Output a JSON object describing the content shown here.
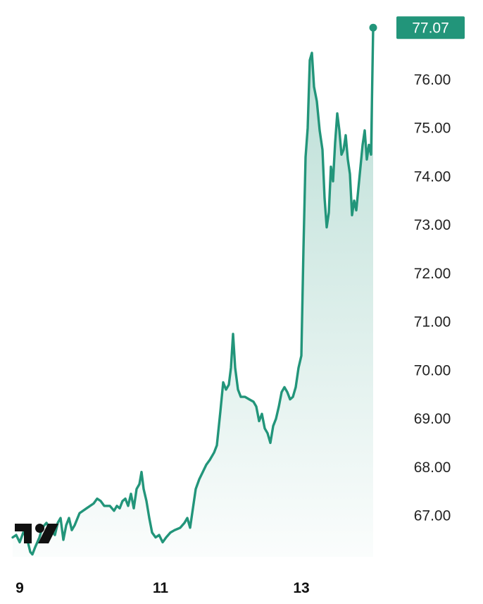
{
  "colors": {
    "line": "#22957A",
    "area_top": "#22957A",
    "label_bg": "#22957A",
    "logo": "#111111",
    "tick_text": "#222222"
  },
  "logo_icon": "tradingview-logo-icon",
  "last_price_label": "77.07",
  "chart_data": {
    "type": "area",
    "title": "",
    "xlabel": "",
    "ylabel": "",
    "x_ticks": [
      "9",
      "11",
      "13"
    ],
    "y_ticks": [
      "67.00",
      "68.00",
      "69.00",
      "70.00",
      "71.00",
      "72.00",
      "73.00",
      "74.00",
      "75.00",
      "76.00"
    ],
    "ylim": [
      66.15,
      77.35
    ],
    "xlim": [
      8.9,
      14.22
    ],
    "grid": false,
    "legend": "none",
    "series": [
      {
        "values": [
          [
            8.9,
            66.55
          ],
          [
            8.95,
            66.6
          ],
          [
            9.0,
            66.45
          ],
          [
            9.05,
            66.65
          ],
          [
            9.1,
            66.55
          ],
          [
            9.15,
            66.25
          ],
          [
            9.18,
            66.2
          ],
          [
            9.22,
            66.35
          ],
          [
            9.28,
            66.55
          ],
          [
            9.32,
            66.75
          ],
          [
            9.38,
            66.85
          ],
          [
            9.44,
            66.7
          ],
          [
            9.5,
            66.6
          ],
          [
            9.54,
            66.85
          ],
          [
            9.58,
            66.95
          ],
          [
            9.62,
            66.5
          ],
          [
            9.66,
            66.8
          ],
          [
            9.7,
            66.95
          ],
          [
            9.74,
            66.7
          ],
          [
            9.78,
            66.8
          ],
          [
            9.85,
            67.05
          ],
          [
            9.95,
            67.15
          ],
          [
            10.05,
            67.25
          ],
          [
            10.1,
            67.35
          ],
          [
            10.15,
            67.3
          ],
          [
            10.2,
            67.2
          ],
          [
            10.28,
            67.2
          ],
          [
            10.34,
            67.1
          ],
          [
            10.38,
            67.2
          ],
          [
            10.42,
            67.15
          ],
          [
            10.46,
            67.3
          ],
          [
            10.5,
            67.35
          ],
          [
            10.54,
            67.2
          ],
          [
            10.58,
            67.45
          ],
          [
            10.62,
            67.15
          ],
          [
            10.66,
            67.55
          ],
          [
            10.7,
            67.65
          ],
          [
            10.73,
            67.9
          ],
          [
            10.76,
            67.55
          ],
          [
            10.8,
            67.3
          ],
          [
            10.84,
            66.95
          ],
          [
            10.88,
            66.65
          ],
          [
            10.93,
            66.55
          ],
          [
            10.98,
            66.6
          ],
          [
            11.03,
            66.45
          ],
          [
            11.08,
            66.55
          ],
          [
            11.14,
            66.65
          ],
          [
            11.2,
            66.7
          ],
          [
            11.28,
            66.75
          ],
          [
            11.34,
            66.85
          ],
          [
            11.38,
            66.95
          ],
          [
            11.42,
            66.75
          ],
          [
            11.46,
            67.15
          ],
          [
            11.5,
            67.55
          ],
          [
            11.55,
            67.75
          ],
          [
            11.6,
            67.9
          ],
          [
            11.65,
            68.05
          ],
          [
            11.7,
            68.15
          ],
          [
            11.76,
            68.3
          ],
          [
            11.8,
            68.45
          ],
          [
            11.85,
            69.15
          ],
          [
            11.89,
            69.75
          ],
          [
            11.93,
            69.6
          ],
          [
            11.97,
            69.7
          ],
          [
            12.0,
            70.05
          ],
          [
            12.03,
            70.75
          ],
          [
            12.06,
            70.05
          ],
          [
            12.1,
            69.6
          ],
          [
            12.14,
            69.45
          ],
          [
            12.2,
            69.45
          ],
          [
            12.26,
            69.4
          ],
          [
            12.32,
            69.35
          ],
          [
            12.36,
            69.25
          ],
          [
            12.4,
            68.95
          ],
          [
            12.44,
            69.1
          ],
          [
            12.48,
            68.8
          ],
          [
            12.52,
            68.7
          ],
          [
            12.56,
            68.5
          ],
          [
            12.6,
            68.85
          ],
          [
            12.64,
            69.0
          ],
          [
            12.68,
            69.25
          ],
          [
            12.72,
            69.55
          ],
          [
            12.76,
            69.65
          ],
          [
            12.8,
            69.55
          ],
          [
            12.84,
            69.4
          ],
          [
            12.88,
            69.45
          ],
          [
            12.92,
            69.65
          ],
          [
            12.96,
            70.05
          ],
          [
            13.0,
            70.3
          ],
          [
            13.03,
            72.5
          ],
          [
            13.06,
            74.4
          ],
          [
            13.09,
            75.0
          ],
          [
            13.12,
            76.4
          ],
          [
            13.15,
            76.55
          ],
          [
            13.18,
            75.85
          ],
          [
            13.22,
            75.55
          ],
          [
            13.26,
            74.95
          ],
          [
            13.3,
            74.55
          ],
          [
            13.33,
            73.55
          ],
          [
            13.36,
            72.95
          ],
          [
            13.39,
            73.25
          ],
          [
            13.42,
            74.2
          ],
          [
            13.45,
            73.9
          ],
          [
            13.48,
            74.7
          ],
          [
            13.51,
            75.3
          ],
          [
            13.54,
            74.95
          ],
          [
            13.57,
            74.45
          ],
          [
            13.6,
            74.55
          ],
          [
            13.63,
            74.85
          ],
          [
            13.66,
            74.35
          ],
          [
            13.69,
            74.05
          ],
          [
            13.72,
            73.2
          ],
          [
            13.75,
            73.5
          ],
          [
            13.78,
            73.3
          ],
          [
            13.81,
            73.75
          ],
          [
            13.84,
            74.2
          ],
          [
            13.87,
            74.65
          ],
          [
            13.9,
            74.95
          ],
          [
            13.93,
            74.35
          ],
          [
            13.96,
            74.65
          ],
          [
            13.99,
            74.45
          ],
          [
            14.02,
            77.07
          ]
        ]
      }
    ]
  }
}
